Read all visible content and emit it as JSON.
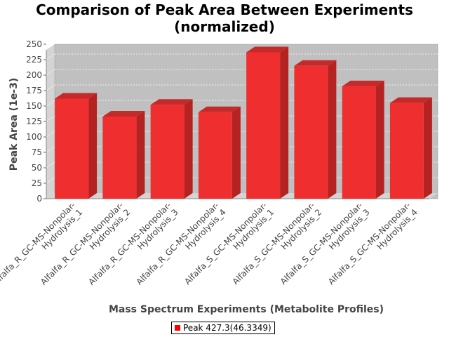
{
  "chart_data": {
    "type": "bar",
    "title_line1": "Comparison of Peak Area Between Experiments",
    "title_line2": "(normalized)",
    "xlabel": "Mass Spectrum Experiments (Metabolite Profiles)",
    "ylabel": "Peak Area (1e-3)",
    "ylim": [
      0,
      250
    ],
    "yticks": [
      0,
      25,
      50,
      75,
      100,
      125,
      150,
      175,
      200,
      225,
      250
    ],
    "categories": [
      [
        "Alfalfa_R_GC-MS-Nonpolar-",
        "Hydrolysis_1"
      ],
      [
        "Alfalfa_R_GC-MS-Nonpolar-",
        "Hydrolysis_2"
      ],
      [
        "Alfalfa_R_GC-MS-Nonpolar-",
        "Hydrolysis_3"
      ],
      [
        "Alfalfa_R_GC-MS-Nonpolar-",
        "Hydrolysis_4"
      ],
      [
        "Alfalfa_S_GC-MS-Nonpolar-",
        "Hydrolysis_1"
      ],
      [
        "Alfalfa_S_GC-MS-Nonpolar-",
        "Hydrolysis_2"
      ],
      [
        "Alfalfa_S_GC-MS-Nonpolar-",
        "Hydrolysis_3"
      ],
      [
        "Alfalfa_S_GC-MS-Nonpolar-",
        "Hydrolysis_4"
      ]
    ],
    "series": [
      {
        "name": "Peak 427.3(46.3349)",
        "values": [
          162,
          133,
          152,
          140,
          237,
          215,
          182,
          155
        ]
      }
    ],
    "grid": true,
    "legend_position": "bottom-center",
    "colors": {
      "bar": "#ff0000",
      "plot_bg": "#c0c0c0",
      "wall": "#d4d4d4",
      "gridline": "#ffffff"
    }
  }
}
